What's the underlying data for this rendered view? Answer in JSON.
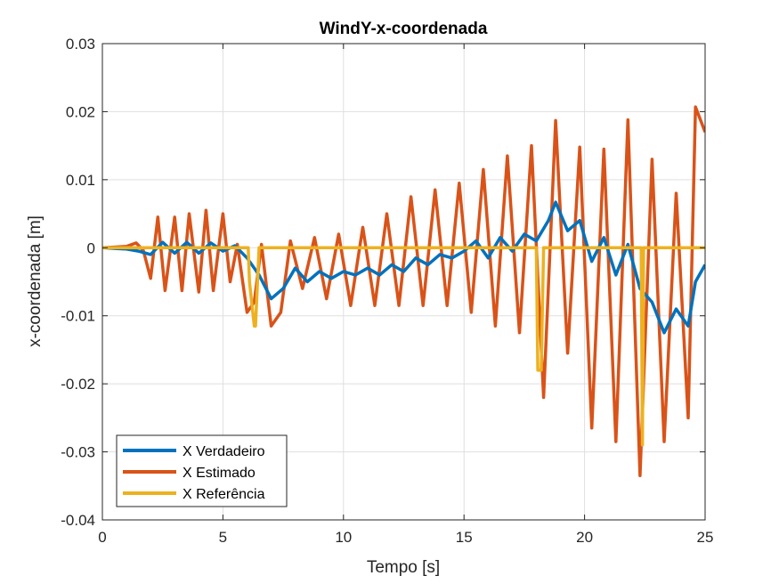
{
  "chart_data": {
    "type": "line",
    "title": "WindY-x-coordenada",
    "xlabel": "Tempo [s]",
    "ylabel": "x-coordenada [m]",
    "xlim": [
      0,
      25
    ],
    "ylim": [
      -0.04,
      0.03
    ],
    "xticks": [
      0,
      5,
      10,
      15,
      20,
      25
    ],
    "xtick_labels": [
      "0",
      "5",
      "10",
      "15",
      "20",
      "25"
    ],
    "yticks": [
      -0.04,
      -0.03,
      -0.02,
      -0.01,
      0,
      0.01,
      0.02,
      0.03
    ],
    "ytick_labels": [
      "-0.04",
      "-0.03",
      "-0.02",
      "-0.01",
      "0",
      "0.01",
      "0.02",
      "0.03"
    ],
    "grid": true,
    "legend_position": "bottom-left",
    "series": [
      {
        "name": "X Verdadeiro",
        "color": "#0072BD",
        "x": [
          0,
          1,
          1.5,
          2.0,
          2.5,
          3.0,
          3.5,
          4.0,
          4.5,
          5.0,
          5.5,
          6.0,
          6.5,
          7.0,
          7.5,
          8.0,
          8.5,
          9.0,
          9.5,
          10.0,
          10.5,
          11.0,
          11.5,
          12.0,
          12.5,
          13.0,
          13.5,
          14.0,
          14.5,
          15.0,
          15.5,
          16.0,
          16.5,
          17.0,
          17.5,
          18.0,
          18.5,
          18.8,
          19.3,
          19.8,
          20.3,
          20.8,
          21.3,
          21.8,
          22.3,
          22.8,
          23.3,
          23.8,
          24.3,
          24.6,
          25.0
        ],
        "y": [
          0,
          -0.0002,
          -0.0005,
          -0.001,
          0.0008,
          -0.0008,
          0.0008,
          -0.0008,
          0.0007,
          -0.0005,
          0.0003,
          -0.0015,
          -0.004,
          -0.0075,
          -0.006,
          -0.003,
          -0.005,
          -0.0035,
          -0.0045,
          -0.0035,
          -0.004,
          -0.003,
          -0.004,
          -0.0025,
          -0.0035,
          -0.0015,
          -0.0025,
          -0.001,
          -0.0015,
          -0.0005,
          0.001,
          -0.0015,
          0.0015,
          -0.0005,
          0.002,
          0.001,
          0.004,
          0.0067,
          0.0025,
          0.004,
          -0.002,
          0.0015,
          -0.004,
          0.0005,
          -0.006,
          -0.008,
          -0.0125,
          -0.009,
          -0.0115,
          -0.005,
          -0.0025
        ]
      },
      {
        "name": "X Estimado",
        "color": "#D95319",
        "x": [
          0,
          1.0,
          1.4,
          1.7,
          2.0,
          2.3,
          2.6,
          3.0,
          3.3,
          3.6,
          4.0,
          4.3,
          4.6,
          5.0,
          5.3,
          5.6,
          6.0,
          6.3,
          6.6,
          7.0,
          7.4,
          7.8,
          8.3,
          8.8,
          9.3,
          9.8,
          10.3,
          10.8,
          11.3,
          11.8,
          12.3,
          12.8,
          13.3,
          13.8,
          14.3,
          14.8,
          15.3,
          15.8,
          16.3,
          16.8,
          17.3,
          17.8,
          18.3,
          18.8,
          19.3,
          19.8,
          20.3,
          20.8,
          21.3,
          21.8,
          22.3,
          22.8,
          23.3,
          23.8,
          24.3,
          24.6,
          25.0
        ],
        "y": [
          0,
          0.0002,
          0.0007,
          -0.0004,
          -0.0045,
          0.0045,
          -0.0063,
          0.0045,
          -0.0063,
          0.005,
          -0.0065,
          0.0055,
          -0.0063,
          0.005,
          -0.005,
          0.0005,
          -0.0095,
          -0.008,
          0.0005,
          -0.0115,
          -0.0095,
          0.001,
          -0.006,
          0.0015,
          -0.0075,
          0.002,
          -0.0085,
          0.003,
          -0.0085,
          0.005,
          -0.0085,
          0.0075,
          -0.0085,
          0.0085,
          -0.0085,
          0.0095,
          -0.0095,
          0.0115,
          -0.0115,
          0.0135,
          -0.0125,
          0.015,
          -0.022,
          0.0187,
          -0.0155,
          0.0148,
          -0.0265,
          0.0145,
          -0.0285,
          0.0188,
          -0.0335,
          0.013,
          -0.0285,
          0.008,
          -0.025,
          0.0207,
          0.017
        ]
      },
      {
        "name": "X Referência",
        "color": "#EDB120",
        "x": [
          0,
          6.05,
          6.1,
          6.3,
          6.35,
          6.5,
          17.99,
          18.0,
          18.06,
          18.2,
          18.3,
          22.35,
          22.4,
          22.45,
          25.0
        ],
        "y": [
          0,
          0,
          -0.005,
          -0.0115,
          -0.0115,
          0,
          0,
          0,
          -0.018,
          -0.018,
          0,
          0,
          -0.029,
          0,
          0
        ]
      }
    ]
  }
}
